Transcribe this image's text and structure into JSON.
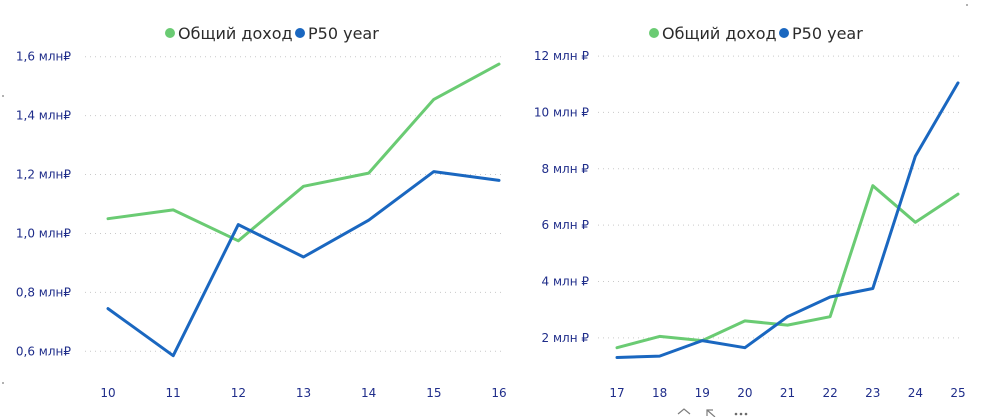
{
  "colors": {
    "green": "#6acb73",
    "blue": "#1a67c0",
    "tick": "#1f2d8a"
  },
  "legend": {
    "items": [
      {
        "label": "Общий доход",
        "color": "#6acb73"
      },
      {
        "label": "P50 year",
        "color": "#1a67c0"
      }
    ]
  },
  "footer_icons": [
    "collapse-icon",
    "expand-icon",
    "more-options-icon"
  ],
  "chart_data": [
    {
      "type": "line",
      "categories": [
        "10",
        "11",
        "12",
        "13",
        "14",
        "15",
        "16"
      ],
      "yticks": [
        "0,6 млн₽",
        "0,8 млн₽",
        "1,0 млн₽",
        "1,2 млн₽",
        "1,4 млн₽",
        "1,6 млн₽"
      ],
      "ytick_values": [
        0.6,
        0.8,
        1.0,
        1.2,
        1.4,
        1.6
      ],
      "ylim": [
        0.55,
        1.65
      ],
      "grid": true,
      "legend_position": "top-center",
      "series": [
        {
          "name": "Общий доход",
          "color": "#6acb73",
          "values": [
            1.05,
            1.08,
            0.975,
            1.16,
            1.205,
            1.455,
            1.575
          ]
        },
        {
          "name": "P50 year",
          "color": "#1a67c0",
          "values": [
            0.745,
            0.585,
            1.03,
            0.92,
            1.045,
            1.21,
            1.18
          ]
        }
      ]
    },
    {
      "type": "line",
      "categories": [
        "17",
        "18",
        "19",
        "20",
        "21",
        "22",
        "23",
        "24",
        "25"
      ],
      "yticks": [
        "2 млн ₽",
        "4 млн ₽",
        "6 млн ₽",
        "8 млн ₽",
        "10 млн ₽",
        "12 млн ₽"
      ],
      "ytick_values": [
        2,
        4,
        6,
        8,
        10,
        12
      ],
      "ylim": [
        1.0,
        12.5
      ],
      "grid": true,
      "legend_position": "top-center",
      "series": [
        {
          "name": "Общий доход",
          "color": "#6acb73",
          "values": [
            1.65,
            2.05,
            1.9,
            2.6,
            2.45,
            2.75,
            7.4,
            6.1,
            7.1
          ]
        },
        {
          "name": "P50 year",
          "color": "#1a67c0",
          "values": [
            1.3,
            1.35,
            1.9,
            1.65,
            2.75,
            3.45,
            3.75,
            8.45,
            11.05
          ]
        }
      ]
    }
  ]
}
